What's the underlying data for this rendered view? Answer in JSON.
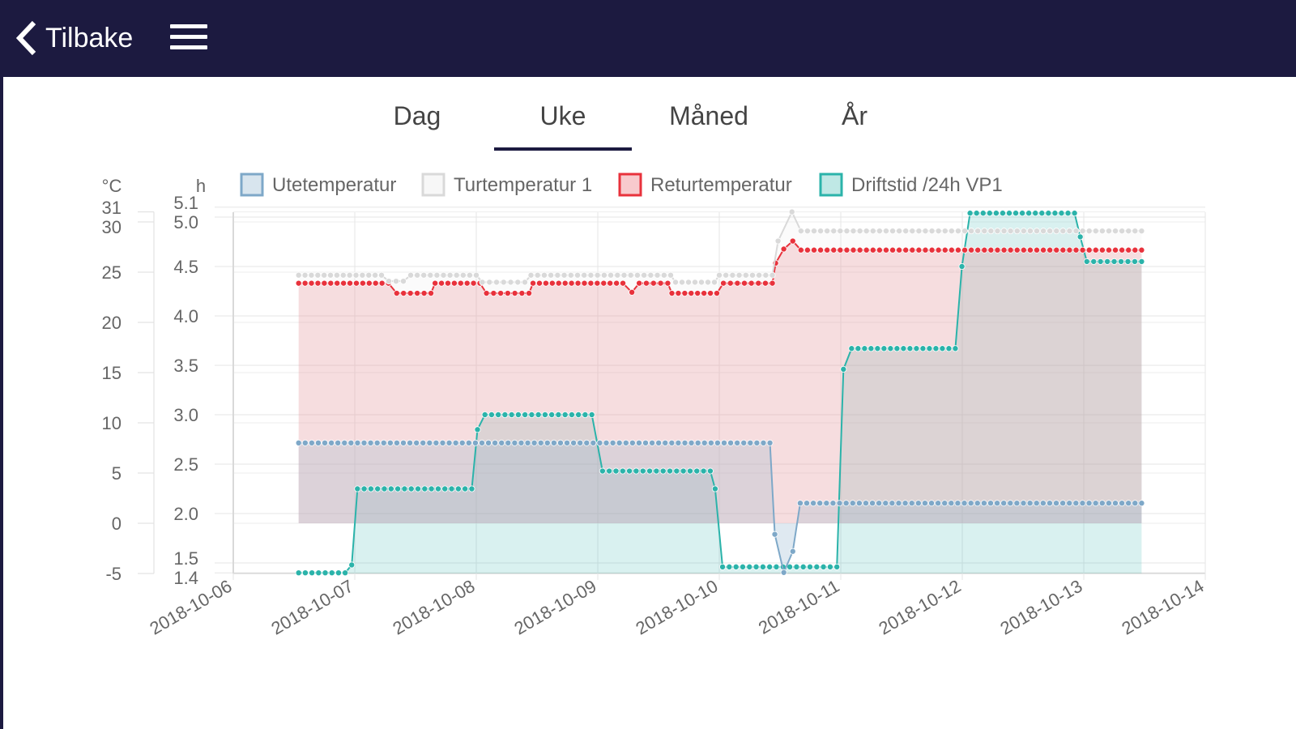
{
  "header": {
    "back_label": "Tilbake"
  },
  "tabs": [
    {
      "label": "Dag"
    },
    {
      "label": "Uke",
      "active": true
    },
    {
      "label": "Måned"
    },
    {
      "label": "År"
    }
  ],
  "chart_data": {
    "type": "line",
    "x_start_date": "2018-10-06",
    "x_tick_labels": [
      "2018-10-06",
      "2018-10-07",
      "2018-10-08",
      "2018-10-09",
      "2018-10-10",
      "2018-10-11",
      "2018-10-12",
      "2018-10-13",
      "2018-10-14"
    ],
    "y_left": {
      "label": "°C",
      "range": [
        -5,
        31
      ],
      "ticks": [
        "-5",
        "0",
        "5",
        "10",
        "15",
        "20",
        "25",
        "30",
        "31"
      ]
    },
    "y_right": {
      "label": "h",
      "range": [
        1.4,
        5.1
      ],
      "ticks": [
        "1.4",
        "1.5",
        "2.0",
        "2.5",
        "3.0",
        "3.5",
        "4.0",
        "4.5",
        "5.0",
        "5.1"
      ]
    },
    "x_unit": "days since 2018-10-06",
    "legend": {
      "placement": "top"
    },
    "series": [
      {
        "name": "Utetemperatur",
        "axis": "left",
        "color": "#7ea8c8",
        "fill": "rgba(126,168,200,0.25)",
        "segments": [
          [
            0.538,
            4.417,
            8.0
          ],
          [
            4.457,
            4.457,
            -1.1
          ],
          [
            4.531,
            4.531,
            -4.9
          ],
          [
            4.605,
            4.605,
            -2.8
          ],
          [
            4.666,
            7.476,
            2.0
          ]
        ]
      },
      {
        "name": "Turtemperatur 1",
        "axis": "left",
        "color": "#d9d9d9",
        "fill": "rgba(230,230,230,0.15)",
        "segments": [
          [
            0.538,
            1.22,
            24.7
          ],
          [
            1.28,
            1.4,
            24.1
          ],
          [
            1.46,
            2.0,
            24.7
          ],
          [
            2.05,
            2.4,
            24.0
          ],
          [
            2.45,
            3.6,
            24.7
          ],
          [
            3.64,
            3.96,
            24.0
          ],
          [
            4.0,
            4.437,
            24.7
          ],
          [
            4.484,
            4.484,
            28.1
          ],
          [
            4.598,
            4.598,
            31.0
          ],
          [
            4.672,
            7.476,
            29.1
          ]
        ]
      },
      {
        "name": "Returtemperatur",
        "axis": "left",
        "color": "#e8323c",
        "fill": "rgba(232,80,90,0.2)",
        "segments": [
          [
            0.538,
            1.277,
            23.9
          ],
          [
            1.345,
            1.627,
            22.9
          ],
          [
            1.661,
            2.03,
            23.9
          ],
          [
            2.084,
            2.434,
            22.9
          ],
          [
            2.467,
            3.207,
            23.9
          ],
          [
            3.281,
            3.281,
            23.0
          ],
          [
            3.341,
            3.576,
            23.9
          ],
          [
            3.61,
            3.98,
            22.9
          ],
          [
            4.034,
            4.437,
            23.9
          ],
          [
            4.464,
            4.464,
            25.9
          ],
          [
            4.531,
            4.531,
            27.3
          ],
          [
            4.605,
            4.605,
            28.1
          ],
          [
            4.672,
            7.476,
            27.2
          ]
        ]
      },
      {
        "name": "Driftstid /24h VP1",
        "axis": "right",
        "color": "#2bb3aa",
        "fill": "rgba(43,179,170,0.18)",
        "segments": [
          [
            0.538,
            0.921,
            1.4
          ],
          [
            0.975,
            0.975,
            1.48
          ],
          [
            1.022,
            1.963,
            2.25
          ],
          [
            2.01,
            2.01,
            2.85
          ],
          [
            2.071,
            2.951,
            3.0
          ],
          [
            3.039,
            3.926,
            2.43
          ],
          [
            3.966,
            3.966,
            2.25
          ],
          [
            4.027,
            4.968,
            1.46
          ],
          [
            5.022,
            5.022,
            3.46
          ],
          [
            5.089,
            5.943,
            3.67
          ],
          [
            5.997,
            5.997,
            4.5
          ],
          [
            6.064,
            6.924,
            5.04
          ],
          [
            6.971,
            6.971,
            4.8
          ],
          [
            7.025,
            7.476,
            4.55
          ]
        ]
      }
    ]
  }
}
